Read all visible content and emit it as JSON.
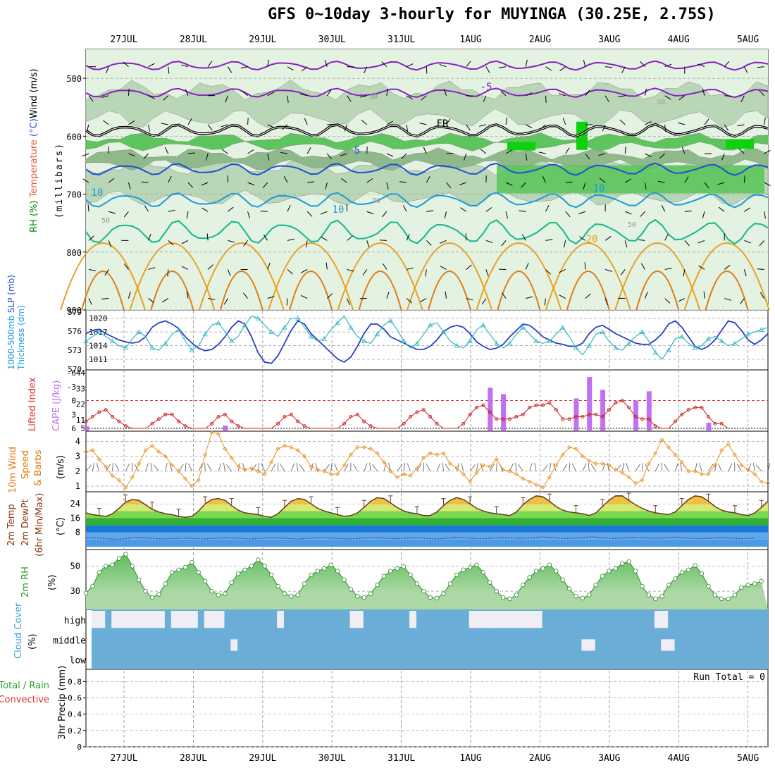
{
  "title": "GFS 0~10day 3-hourly for MUYINGA (30.25E, 2.75S)",
  "colors": {
    "rh_light": "#e3f2e1",
    "rh_mid": "#b9d6b6",
    "rh_dark": "#8fb98b",
    "rh_green": "#5cc55c",
    "rh_bright": "#0ed20e",
    "temp_purple": "#8a1fc4",
    "temp_blue": "#1f4fd0",
    "temp_lblue": "#1a9ad8",
    "temp_teal": "#14b88a",
    "temp_orange": "#e8a020",
    "temp_dorange": "#e07a10",
    "temp_red": "#e0107a",
    "sc_bg": "#6aaed8",
    "sc_cloud": "#f0eef4"
  },
  "chart_data": {
    "type": "meteogram",
    "date_labels": [
      "27JUL",
      "28JUL",
      "29JUL",
      "30JUL",
      "31JUL",
      "1AUG",
      "2AUG",
      "3AUG",
      "4AUG",
      "5AUG"
    ],
    "panels": [
      {
        "name": "upper_air",
        "ylabel": [
          "RH (%)",
          "Temperature (°C)",
          "Wind (m/s)"
        ],
        "ylabel2": "(millibars)",
        "yticks": [
          500,
          600,
          700,
          800,
          900
        ],
        "ylim": [
          450,
          900
        ],
        "contour_labels": [
          {
            "text": "-5"
          },
          {
            "text": "FR"
          },
          {
            "text": "5"
          },
          {
            "text": "10"
          },
          {
            "text": "10"
          },
          {
            "text": "10"
          },
          {
            "text": "20"
          },
          {
            "text": "30"
          },
          {
            "text": "30"
          },
          {
            "text": "50"
          },
          {
            "text": "50"
          },
          {
            "text": "30"
          }
        ]
      },
      {
        "name": "thickness_slp",
        "ylabel": [
          "1000-500mb",
          "Thickness (dm)",
          "SLP (mb)"
        ],
        "yticks_left": [
          570,
          573,
          576,
          579
        ],
        "yticks_right": [
          1011,
          1014,
          1017,
          1020
        ],
        "thickness": [
          575.5,
          576.0,
          576.2,
          575.5,
          575.0,
          574.5,
          574.2,
          574.0,
          574.2,
          575.0,
          576.5,
          577.2,
          577.5,
          577.0,
          576.3,
          575.0,
          574.0,
          573.2,
          572.8,
          573.0,
          573.8,
          575.0,
          576.5,
          577.5,
          577.0,
          575.0,
          572.5,
          571.0,
          570.8,
          572.0,
          574.0,
          576.0,
          577.5,
          577.0,
          575.5,
          574.5,
          573.5,
          572.5,
          571.5,
          571.0,
          571.8,
          573.5,
          575.5,
          577.0,
          577.0,
          576.2,
          575.0,
          574.5,
          574.0,
          573.5,
          573.0,
          573.0,
          573.5,
          574.5,
          575.8,
          576.5,
          576.8,
          576.5,
          575.5,
          574.2,
          573.5,
          573.0,
          573.2,
          573.8,
          575.0,
          576.0,
          577.0,
          576.8,
          576.0,
          575.0,
          574.5,
          574.0,
          573.8,
          573.5,
          573.5,
          574.0,
          575.5,
          576.5,
          576.8,
          576.2,
          575.5,
          575.0,
          574.5,
          574.0,
          573.8,
          573.8,
          574.5,
          575.5,
          577.0,
          577.5,
          576.5,
          575.0,
          573.5,
          573.0,
          573.5,
          574.5,
          576.0,
          577.5,
          577.2,
          576.0,
          574.5,
          573.8,
          574.5,
          575.5
        ],
        "slp": [
          1015.0,
          1016.0,
          1017.0,
          1016.0,
          1015.0,
          1014.0,
          1013.5,
          1015.5,
          1017.0,
          1016.0,
          1013.5,
          1013.0,
          1014.5,
          1016.5,
          1017.5,
          1015.0,
          1013.0,
          1014.0,
          1016.5,
          1018.5,
          1019.0,
          1017.0,
          1015.0,
          1016.0,
          1018.5,
          1020.5,
          1020.0,
          1018.5,
          1017.0,
          1016.0,
          1018.0,
          1020.0,
          1020.0,
          1018.0,
          1016.0,
          1015.0,
          1015.5,
          1017.5,
          1019.0,
          1020.5,
          1018.0,
          1016.0,
          1015.0,
          1014.5,
          1016.5,
          1018.5,
          1019.5,
          1017.5,
          1015.0,
          1013.5,
          1014.5,
          1016.5,
          1018.5,
          1019.0,
          1017.0,
          1015.0,
          1014.0,
          1013.5,
          1015.0,
          1017.5,
          1018.5,
          1016.5,
          1014.5,
          1013.5,
          1014.5,
          1016.5,
          1018.0,
          1016.5,
          1015.0,
          1014.5,
          1015.0,
          1016.5,
          1018.0,
          1016.0,
          1013.5,
          1012.0,
          1014.0,
          1016.5,
          1017.0,
          1015.0,
          1013.5,
          1013.0,
          1014.5,
          1016.0,
          1017.0,
          1015.0,
          1012.5,
          1011.0,
          1013.0,
          1015.5,
          1016.0,
          1014.5,
          1013.5,
          1014.0,
          1015.5,
          1016.0,
          1015.0,
          1014.0,
          1014.5,
          1015.5,
          1016.5,
          1017.0,
          1017.5,
          1018.0
        ]
      },
      {
        "name": "lifted_cape",
        "ylabel": [
          "Lifted Index",
          "CAPE (J/kg)"
        ],
        "yticks_left": [
          6,
          3,
          0,
          -3,
          -6
        ],
        "yticks_right": [
          5,
          11,
          22,
          33,
          44
        ],
        "lifted_index": [
          4.5,
          3.5,
          2.5,
          2.0,
          3.5,
          4.5,
          5.5,
          6.0,
          6.0,
          6.0,
          5.0,
          4.0,
          3.0,
          3.0,
          4.5,
          5.5,
          6.0,
          6.0,
          6.0,
          5.0,
          3.5,
          3.0,
          4.5,
          5.5,
          6.0,
          6.0,
          6.0,
          6.0,
          6.0,
          5.0,
          3.5,
          3.0,
          4.5,
          5.5,
          6.0,
          6.0,
          6.0,
          6.0,
          6.0,
          5.0,
          3.5,
          3.0,
          4.5,
          5.5,
          6.0,
          6.0,
          6.0,
          6.0,
          5.0,
          3.5,
          2.5,
          2.0,
          3.5,
          5.0,
          6.0,
          6.0,
          6.0,
          5.0,
          3.0,
          1.5,
          1.0,
          2.5,
          4.0,
          4.0,
          4.0,
          3.5,
          3.0,
          1.5,
          1.0,
          1.0,
          0.5,
          2.0,
          4.0,
          4.0,
          3.5,
          3.5,
          3.0,
          3.0,
          3.5,
          2.0,
          0.5,
          0.0,
          1.5,
          3.5,
          4.0,
          4.0,
          5.5,
          6.0,
          6.0,
          4.5,
          3.0,
          2.0,
          1.5,
          1.5,
          3.5,
          5.0,
          5.0,
          6.0
        ],
        "cape_bars": [
          {
            "index": 0,
            "value": 6.5
          },
          {
            "index": 21,
            "value": 7.0
          },
          {
            "index": 61,
            "value": 33.5
          },
          {
            "index": 63,
            "value": 29.0
          },
          {
            "index": 74,
            "value": 26.0
          },
          {
            "index": 76,
            "value": 41.0
          },
          {
            "index": 78,
            "value": 32.0
          },
          {
            "index": 83,
            "value": 24.5
          },
          {
            "index": 85,
            "value": 31.0
          },
          {
            "index": 94,
            "value": 9.0
          }
        ]
      },
      {
        "name": "wind10m",
        "ylabel": [
          "10m Wind",
          "Speed",
          "& Barbs"
        ],
        "yunit": "(m/s)",
        "yticks": [
          1,
          2,
          3,
          4
        ],
        "speed": [
          3.3,
          3.4,
          2.8,
          2.3,
          1.7,
          1.4,
          0.9,
          1.6,
          2.5,
          3.4,
          3.7,
          3.3,
          3.0,
          2.4,
          2.0,
          1.5,
          1.0,
          1.4,
          3.1,
          4.6,
          4.5,
          3.5,
          2.9,
          2.3,
          2.1,
          2.2,
          2.0,
          1.8,
          2.6,
          3.5,
          3.7,
          3.6,
          3.4,
          3.0,
          2.3,
          2.1,
          2.0,
          1.8,
          1.8,
          2.4,
          3.1,
          3.6,
          3.6,
          3.5,
          3.2,
          2.6,
          2.0,
          1.6,
          1.8,
          1.7,
          2.2,
          2.9,
          3.2,
          3.1,
          3.2,
          2.5,
          2.2,
          1.8,
          1.3,
          1.9,
          2.4,
          2.3,
          2.8,
          2.1,
          2.0,
          1.8,
          1.5,
          1.3,
          1.1,
          0.9,
          1.6,
          2.4,
          3.1,
          3.6,
          3.5,
          3.0,
          2.7,
          2.5,
          2.5,
          2.4,
          2.1,
          1.9,
          1.6,
          1.2,
          1.4,
          2.5,
          3.2,
          4.1,
          3.6,
          3.1,
          2.6,
          2.0,
          2.0,
          1.8,
          1.8,
          2.4,
          3.4,
          3.8,
          3.1,
          2.4,
          2.1,
          1.8,
          1.3,
          1.2
        ]
      },
      {
        "name": "temp2m",
        "ylabel": [
          "2m Temp",
          "2m DewPt",
          "(6hr Min/Max)"
        ],
        "yunit": "(°C)",
        "yticks": [
          8,
          16,
          24
        ],
        "temp": [
          19.0,
          18.0,
          17.5,
          17.0,
          18.5,
          21.5,
          25.0,
          26.5,
          26.0,
          23.5,
          21.0,
          19.5,
          18.5,
          18.0,
          17.0,
          16.5,
          17.0,
          20.0,
          24.0,
          26.5,
          27.0,
          26.0,
          23.0,
          20.5,
          19.0,
          18.5,
          18.0,
          17.0,
          16.5,
          18.5,
          22.0,
          25.5,
          27.0,
          26.5,
          24.0,
          21.5,
          20.0,
          19.0,
          18.0,
          17.0,
          17.5,
          19.0,
          22.0,
          25.5,
          27.5,
          27.0,
          24.5,
          22.0,
          20.0,
          19.0,
          18.5,
          17.5,
          17.5,
          19.5,
          23.0,
          26.0,
          27.5,
          26.5,
          24.0,
          21.5,
          20.0,
          19.0,
          18.5,
          18.0,
          17.5,
          19.5,
          23.5,
          26.5,
          28.5,
          28.0,
          25.5,
          22.5,
          20.5,
          19.5,
          19.0,
          18.5,
          17.5,
          19.0,
          22.5,
          26.0,
          28.5,
          28.5,
          26.0,
          23.5,
          21.5,
          20.0,
          19.0,
          18.5,
          18.0,
          19.5,
          23.0,
          26.5,
          28.5,
          28.0,
          25.5,
          22.5,
          20.5,
          19.5,
          19.0,
          18.0,
          17.5,
          19.0,
          22.0,
          25.5
        ],
        "dewpt": [
          5.0,
          5.1,
          4.8,
          4.5,
          4.3,
          4.2,
          4.5,
          5.0,
          5.2,
          4.9,
          4.6,
          4.5,
          4.4,
          4.5,
          4.7,
          4.8,
          4.6,
          4.5,
          4.4,
          4.6,
          4.8,
          5.0,
          4.9,
          4.7,
          4.5,
          4.4,
          4.6,
          4.8,
          5.1,
          5.0,
          4.7,
          4.5,
          4.3,
          4.5,
          4.8,
          5.0,
          5.1,
          4.8,
          4.6,
          4.5,
          4.4,
          4.6,
          4.9,
          5.1,
          5.0,
          4.8,
          4.6,
          4.5,
          4.7,
          4.9,
          5.0,
          4.8,
          4.5,
          4.4,
          4.6,
          4.9,
          5.2,
          5.1,
          4.8,
          4.6,
          4.5,
          4.7,
          4.9,
          5.1,
          5.0,
          4.8,
          4.7,
          4.9,
          5.3,
          5.5,
          5.2,
          4.9,
          4.7,
          4.6,
          4.8,
          5.2,
          5.5,
          5.4,
          5.0,
          4.8,
          4.6,
          4.8,
          5.1,
          5.3,
          5.0,
          4.8,
          4.7,
          4.9,
          5.2,
          5.4,
          5.1,
          4.8,
          4.6,
          4.5,
          4.7,
          5.0,
          5.2,
          4.9,
          4.6,
          4.5,
          4.7,
          4.9
        ]
      },
      {
        "name": "rh2m",
        "ylabel": [
          "2m RH"
        ],
        "yunit": "(%)",
        "yticks": [
          30,
          50
        ],
        "rh": [
          28.5,
          34.0,
          45.0,
          50.0,
          51.0,
          56.0,
          59.5,
          50.0,
          39.0,
          30.0,
          25.0,
          27.5,
          36.0,
          45.0,
          47.0,
          49.0,
          53.0,
          45.0,
          38.0,
          30.0,
          27.0,
          28.0,
          37.0,
          44.0,
          47.0,
          50.0,
          55.0,
          50.0,
          43.0,
          34.0,
          28.0,
          26.0,
          27.0,
          36.0,
          43.0,
          46.0,
          48.0,
          51.0,
          46.0,
          39.0,
          31.5,
          26.0,
          25.0,
          28.0,
          35.0,
          42.0,
          46.0,
          48.0,
          49.5,
          43.0,
          36.0,
          30.0,
          25.0,
          24.5,
          28.0,
          36.0,
          43.0,
          47.0,
          49.0,
          51.0,
          45.0,
          37.0,
          30.0,
          25.0,
          24.0,
          27.0,
          35.0,
          41.0,
          46.0,
          48.0,
          51.0,
          46.0,
          39.0,
          32.0,
          26.0,
          24.5,
          27.0,
          35.0,
          42.0,
          46.0,
          48.0,
          52.0,
          53.5,
          46.0,
          34.0,
          27.0,
          24.0,
          26.0,
          35.0,
          40.0,
          45.0,
          47.0,
          50.5,
          44.0,
          34.0,
          27.0,
          24.0,
          24.0,
          27.0,
          33.0,
          35.0,
          36.0,
          38.0
        ]
      },
      {
        "name": "cloud_cover",
        "ylabel": [
          "Cloud Cover"
        ],
        "yunit": "(%)",
        "levels": [
          "high",
          "middle",
          "low"
        ],
        "high": [
          1,
          1,
          0,
          1,
          1,
          1,
          1,
          1,
          1,
          1,
          1,
          0,
          1,
          1,
          1,
          1,
          0,
          1,
          1,
          1,
          0,
          0,
          0,
          0,
          0,
          0,
          0,
          0,
          1,
          0,
          0,
          0,
          0,
          0,
          0,
          0,
          0,
          0,
          0,
          1,
          1,
          0,
          0,
          0,
          0,
          0,
          0,
          0,
          1,
          0,
          0,
          0,
          0,
          0,
          0,
          0,
          0,
          1,
          1,
          1,
          1,
          1,
          1,
          1,
          1,
          1,
          1,
          1,
          0,
          0,
          0,
          0,
          0,
          0,
          0,
          0,
          0,
          0,
          0,
          0,
          0,
          0,
          0,
          0,
          0,
          1,
          1,
          0,
          0,
          0,
          0,
          0,
          0,
          0,
          0,
          0,
          0,
          0,
          0,
          0,
          0,
          0,
          0,
          0
        ],
        "middle": [
          0,
          0,
          0,
          0,
          0,
          0,
          0,
          0,
          0,
          0,
          0,
          0,
          0,
          0,
          0,
          0,
          0,
          0,
          0,
          0,
          0,
          1,
          0,
          0,
          0,
          0,
          0,
          0,
          0,
          0,
          0,
          0,
          0,
          0,
          0,
          0,
          0,
          0,
          0,
          0,
          0,
          0,
          0,
          0,
          0,
          0,
          0,
          0,
          0,
          0,
          0,
          0,
          0,
          0,
          0,
          0,
          0,
          0,
          0,
          0,
          0,
          0,
          0,
          0,
          0,
          0,
          0,
          0,
          0,
          0,
          0,
          0,
          0,
          0,
          1,
          1,
          0,
          0,
          0,
          0,
          0,
          0,
          0,
          0,
          0,
          0,
          1,
          1,
          0,
          0,
          0,
          0,
          0,
          0,
          0,
          0,
          0,
          0,
          0,
          0,
          0,
          0,
          0,
          0
        ]
      },
      {
        "name": "precip",
        "ylabel": [
          "Total / Rain",
          "Convective",
          "3hr Precip (mm)"
        ],
        "yticks": [
          0,
          0.2,
          0.4,
          0.6,
          0.8
        ],
        "run_total": "Run Total = 0"
      }
    ]
  }
}
